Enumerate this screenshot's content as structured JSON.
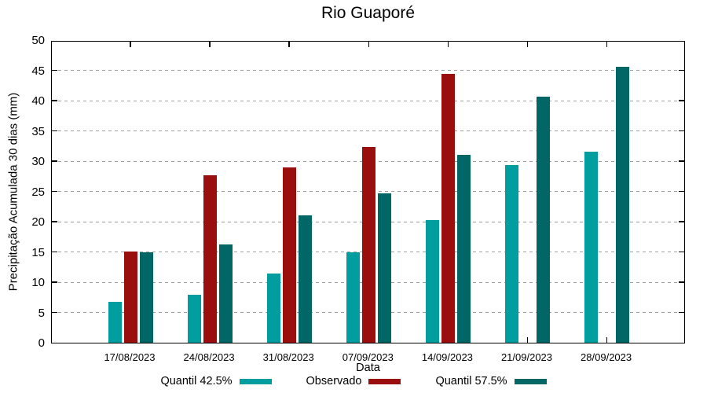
{
  "title": "Rio Guaporé",
  "chart_data": {
    "type": "bar",
    "title": "Rio Guaporé",
    "xlabel": "Data",
    "ylabel": "Precipitação Acumulada 30 dias (mm)",
    "ylim": [
      0,
      50
    ],
    "ytick_interval": 5,
    "grid": "horizontal-dashed",
    "frame": "full-box-with-mirrored-inward-ticks",
    "legend_position": "bottom-center",
    "categories": [
      "17/08/2023",
      "24/08/2023",
      "31/08/2023",
      "07/09/2023",
      "14/09/2023",
      "21/09/2023",
      "28/09/2023"
    ],
    "series": [
      {
        "name": "Quantil 42.5%",
        "color": "#009E9E",
        "values": [
          6.7,
          7.9,
          11.4,
          14.9,
          20.2,
          29.4,
          31.5
        ]
      },
      {
        "name": "Observado",
        "color": "#9A0E0E",
        "values": [
          15.1,
          27.7,
          29.0,
          32.3,
          44.4,
          null,
          null
        ]
      },
      {
        "name": "Quantil 57.5%",
        "color": "#006666",
        "values": [
          15.0,
          16.2,
          21.0,
          24.7,
          31.0,
          40.6,
          45.6
        ]
      }
    ]
  }
}
